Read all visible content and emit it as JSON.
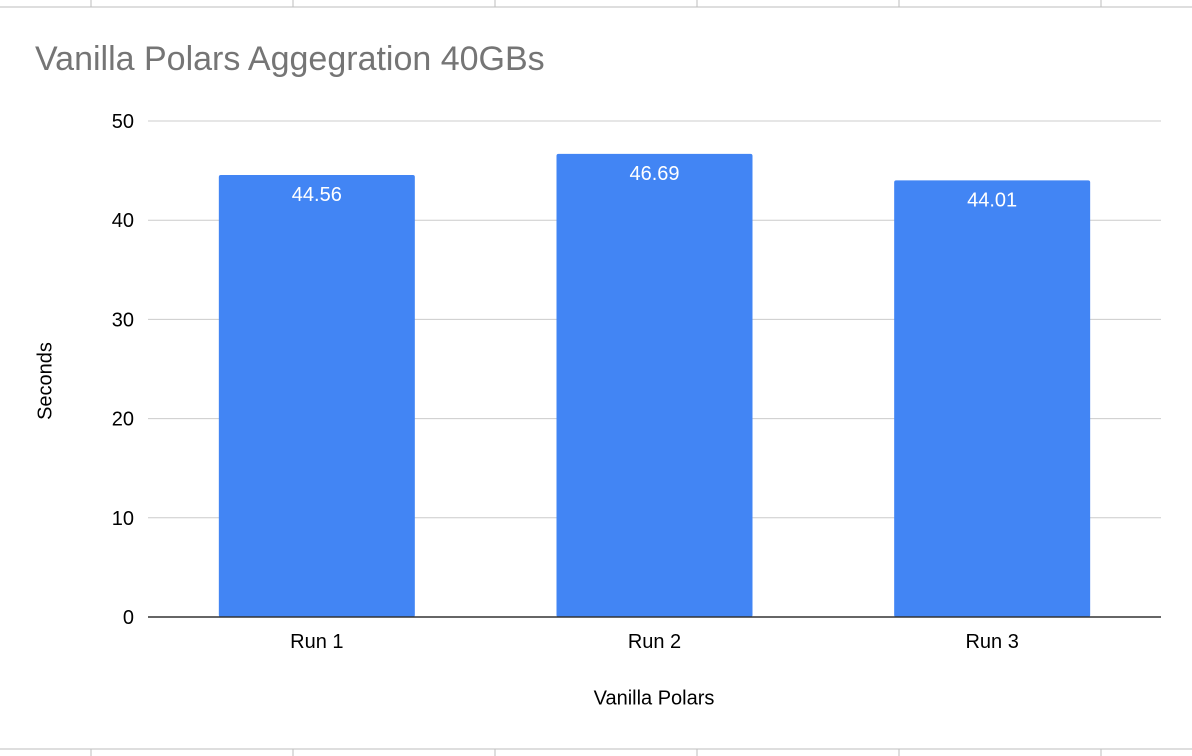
{
  "chart_data": {
    "type": "bar",
    "title": "Vanilla Polars Aggegration 40GBs",
    "xlabel": "Vanilla Polars",
    "ylabel": "Seconds",
    "categories": [
      "Run 1",
      "Run 2",
      "Run 3"
    ],
    "values": [
      44.56,
      46.69,
      44.01
    ],
    "data_labels": [
      "44.56",
      "46.69",
      "44.01"
    ],
    "ylim": [
      0,
      50
    ],
    "yticks": [
      "0",
      "10",
      "20",
      "30",
      "40",
      "50"
    ],
    "grid": true,
    "legend": "none",
    "colors": {
      "bar": "#4285f4",
      "data_label": "#ffffff",
      "title": "#757575",
      "gridline": "#cccccc",
      "axis": "#333333",
      "sheet_grid": "#bdbdbd"
    }
  }
}
